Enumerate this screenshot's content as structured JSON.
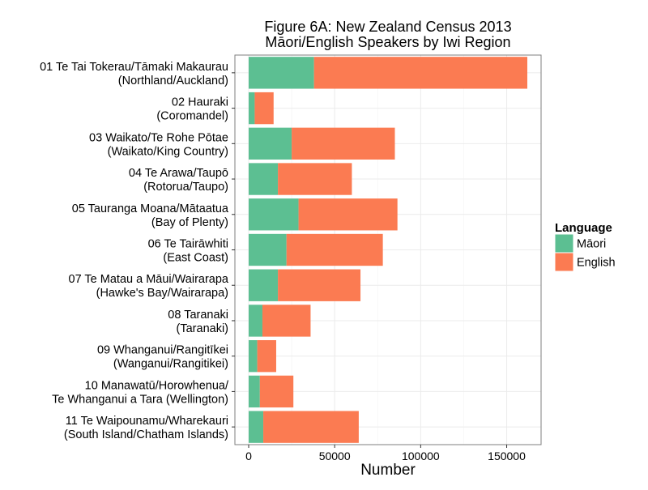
{
  "chart_data": {
    "type": "bar",
    "orientation": "horizontal",
    "stacked": true,
    "title": "Figure 6A: New Zealand Census 2013",
    "subtitle": "Māori/English Speakers by Iwi Region",
    "xlabel": "Number",
    "ylabel": "",
    "xlim": [
      -8000,
      170000
    ],
    "x_ticks": [
      0,
      50000,
      100000,
      150000
    ],
    "x_tick_labels": [
      "0",
      "50000",
      "100000",
      "150000"
    ],
    "grid": true,
    "legend": {
      "title": "Language",
      "position": "right",
      "entries": [
        "Māori",
        "English"
      ]
    },
    "categories": [
      [
        "01 Te Tai Tokerau/Tāmaki Makaurau",
        "(Northland/Auckland)"
      ],
      [
        "02 Hauraki",
        "(Coromandel)"
      ],
      [
        "03 Waikato/Te Rohe Pōtae",
        "(Waikato/King Country)"
      ],
      [
        "04 Te Arawa/Taupō",
        "(Rotorua/Taupo)"
      ],
      [
        "05 Tauranga Moana/Mātaatua",
        "(Bay of Plenty)"
      ],
      [
        "06 Te Tairāwhiti",
        "(East Coast)"
      ],
      [
        "07 Te Matau a Māui/Wairarapa",
        "(Hawke's Bay/Wairarapa)"
      ],
      [
        "08 Taranaki",
        "(Taranaki)"
      ],
      [
        "09 Whanganui/Rangitīkei",
        "(Wanganui/Rangitikei)"
      ],
      [
        "10 Manawatū/Horowhenua/",
        "Te Whanganui a Tara (Wellington)"
      ],
      [
        "11 Te Waipounamu/Wharekauri",
        "(South Island/Chatham Islands)"
      ]
    ],
    "series": [
      {
        "name": "Māori",
        "color": "#5cbf92",
        "values": [
          38000,
          3500,
          25000,
          17000,
          29000,
          22000,
          17000,
          8000,
          5000,
          6500,
          8500
        ]
      },
      {
        "name": "English",
        "color": "#fb7b52",
        "values": [
          124000,
          11000,
          60000,
          43000,
          57500,
          56000,
          48000,
          28000,
          11000,
          19500,
          55500
        ]
      }
    ]
  }
}
